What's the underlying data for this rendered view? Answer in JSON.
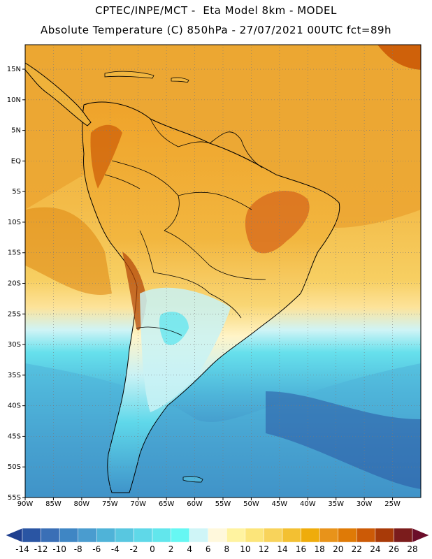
{
  "header": {
    "line1": "CPTEC/INPE/MCT -  Eta Model 8km - MODEL",
    "line2": "Absolute Temperature (C) 850hPa - 27/07/2021 00UTC fct=89h"
  },
  "map": {
    "lat_labels": [
      "15N",
      "10N",
      "5N",
      "EQ",
      "5S",
      "10S",
      "15S",
      "20S",
      "25S",
      "30S",
      "35S",
      "40S",
      "45S",
      "50S",
      "55S"
    ],
    "lon_labels": [
      "90W",
      "85W",
      "80W",
      "75W",
      "70W",
      "65W",
      "60W",
      "55W",
      "50W",
      "45W",
      "40W",
      "35W",
      "30W",
      "25W"
    ],
    "lon_range": [
      -90,
      -20
    ],
    "lat_range": [
      -55,
      19
    ]
  },
  "colorbar": {
    "labels": [
      "-14",
      "-12",
      "-10",
      "-8",
      "-6",
      "-4",
      "-2",
      "0",
      "2",
      "4",
      "6",
      "8",
      "10",
      "12",
      "14",
      "16",
      "18",
      "20",
      "22",
      "24",
      "26",
      "28"
    ],
    "colors": [
      "#1f3f8f",
      "#2a55a3",
      "#3a6fb6",
      "#3f86c4",
      "#4a9ccf",
      "#4fb3d8",
      "#58c7e0",
      "#5fd8e8",
      "#62e6ec",
      "#66f7f3",
      "#cff5f7",
      "#fff8dc",
      "#fff3a0",
      "#fce57a",
      "#f8d35b",
      "#f3c032",
      "#efac0b",
      "#e8931a",
      "#df7a06",
      "#cc5a06",
      "#a83a08",
      "#7b1c1c",
      "#6b0d2a"
    ]
  },
  "colors": {
    "warm": "#e99a23",
    "tropical": "#f0b43c",
    "hot": "#d9701f",
    "mild": "#fde28f",
    "cool": "#c7f4f6",
    "cold": "#5fd8ea",
    "deep": "#3b8fc8",
    "land_line": "#000000"
  }
}
